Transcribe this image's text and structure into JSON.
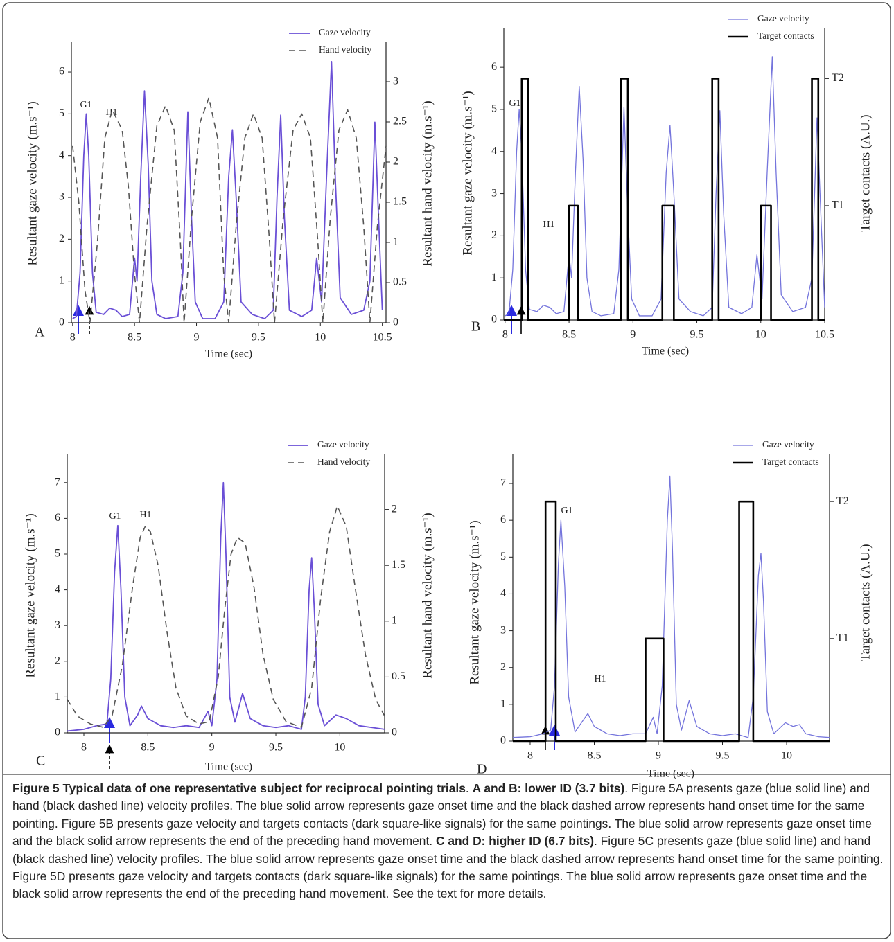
{
  "chart_data": [
    {
      "type": "line",
      "panel_label": "A",
      "xlabel": "Time (sec)",
      "ylabel": "Resultant gaze velocity (m.s⁻¹)",
      "y2label": "Resultant hand velocity (m.s⁻¹)",
      "annotations": [
        "G1",
        "H1"
      ],
      "legend": "top-right",
      "xlim": [
        7.99,
        10.53
      ],
      "xticks": [
        8,
        8.5,
        9,
        9.5,
        10,
        10.5
      ],
      "ylim": [
        0,
        6.73
      ],
      "yticks": [
        0,
        1,
        2,
        3,
        4,
        5,
        6
      ],
      "y2lim": [
        0,
        3.5
      ],
      "y2ticks": [
        0,
        0.5,
        1,
        1.5,
        2,
        2.5,
        3
      ],
      "series": [
        {
          "name": "Gaze velocity",
          "color": "#6a4fd6",
          "line_style": "solid",
          "line_width": 1.8,
          "x": [
            8.0,
            8.03,
            8.06,
            8.09,
            8.11,
            8.13,
            8.16,
            8.19,
            8.25,
            8.3,
            8.35,
            8.4,
            8.46,
            8.5,
            8.52,
            8.55,
            8.58,
            8.61,
            8.64,
            8.68,
            8.75,
            8.85,
            8.89,
            8.93,
            8.96,
            8.99,
            9.05,
            9.15,
            9.22,
            9.26,
            9.29,
            9.32,
            9.36,
            9.45,
            9.55,
            9.62,
            9.65,
            9.68,
            9.71,
            9.75,
            9.85,
            9.93,
            9.97,
            10.01,
            10.05,
            10.09,
            10.12,
            10.16,
            10.25,
            10.35,
            10.4,
            10.44,
            10.47,
            10.5
          ],
          "values": [
            0.1,
            0.15,
            1.2,
            4.0,
            5.0,
            4.0,
            1.2,
            0.25,
            0.2,
            0.35,
            0.3,
            0.15,
            0.2,
            1.55,
            1.0,
            3.5,
            5.55,
            3.8,
            1.0,
            0.2,
            0.1,
            0.15,
            1.2,
            5.05,
            2.5,
            0.5,
            0.1,
            0.1,
            0.5,
            3.5,
            4.62,
            3.0,
            0.5,
            0.2,
            0.1,
            0.3,
            3.0,
            4.97,
            2.5,
            0.3,
            0.15,
            0.3,
            1.55,
            0.5,
            3.5,
            6.25,
            3.5,
            0.6,
            0.2,
            0.3,
            1.0,
            4.8,
            2.5,
            0.3
          ]
        },
        {
          "name": "Hand velocity",
          "color": "#555555",
          "line_style": "dashed",
          "line_width": 1.6,
          "axis": "y2",
          "x": [
            8.0,
            8.05,
            8.1,
            8.14,
            8.2,
            8.26,
            8.32,
            8.4,
            8.45,
            8.5,
            8.54,
            8.6,
            8.68,
            8.75,
            8.82,
            8.87,
            8.9,
            8.96,
            9.03,
            9.1,
            9.17,
            9.22,
            9.26,
            9.32,
            9.39,
            9.46,
            9.53,
            9.59,
            9.63,
            9.7,
            9.78,
            9.85,
            9.92,
            9.98,
            10.02,
            10.08,
            10.15,
            10.22,
            10.29,
            10.35,
            10.4,
            10.46,
            10.53
          ],
          "values": [
            2.2,
            1.5,
            0.4,
            0,
            1.0,
            2.3,
            2.65,
            2.4,
            1.7,
            0.6,
            0,
            1.2,
            2.45,
            2.7,
            2.4,
            1.0,
            0,
            1.3,
            2.5,
            2.8,
            2.3,
            0.6,
            0,
            1.2,
            2.3,
            2.6,
            2.3,
            1.0,
            0,
            1.3,
            2.4,
            2.6,
            2.3,
            1.0,
            0,
            1.3,
            2.4,
            2.65,
            2.3,
            1.2,
            0,
            1.2,
            2.2
          ]
        }
      ]
    },
    {
      "type": "line",
      "panel_label": "B",
      "xlabel": "Time (sec)",
      "ylabel": "Resultant gaze velocity (m.s⁻¹)",
      "y2label": "Target contacts (A.U.)",
      "annotations": [
        "G1",
        "H1"
      ],
      "legend": "top-right",
      "xlim": [
        7.99,
        10.5
      ],
      "xticks": [
        8,
        8.5,
        9,
        9.5,
        10,
        10.5
      ],
      "ylim": [
        0,
        6.94
      ],
      "yticks": [
        0,
        1,
        2,
        3,
        4,
        5,
        6
      ],
      "y2lim": [
        0.1,
        2.4
      ],
      "y2ticks": [
        {
          "value": 1,
          "label": "T1"
        },
        {
          "value": 2,
          "label": "T2"
        }
      ],
      "series": [
        {
          "name": "Gaze velocity",
          "color": "#7474dc",
          "line_style": "solid",
          "line_width": 1.3,
          "x": [
            8.0,
            8.03,
            8.06,
            8.09,
            8.11,
            8.13,
            8.16,
            8.19,
            8.25,
            8.3,
            8.35,
            8.4,
            8.46,
            8.5,
            8.52,
            8.55,
            8.58,
            8.61,
            8.64,
            8.68,
            8.75,
            8.85,
            8.89,
            8.93,
            8.96,
            8.99,
            9.05,
            9.15,
            9.22,
            9.26,
            9.29,
            9.32,
            9.36,
            9.45,
            9.55,
            9.62,
            9.65,
            9.68,
            9.71,
            9.75,
            9.85,
            9.93,
            9.97,
            10.01,
            10.05,
            10.09,
            10.12,
            10.16,
            10.25,
            10.35,
            10.4,
            10.44,
            10.47,
            10.5
          ],
          "values": [
            0.1,
            0.15,
            1.2,
            4.0,
            5.0,
            4.0,
            1.2,
            0.25,
            0.2,
            0.35,
            0.3,
            0.15,
            0.2,
            1.55,
            1.0,
            3.5,
            5.55,
            3.8,
            1.0,
            0.2,
            0.1,
            0.15,
            1.2,
            5.05,
            2.5,
            0.5,
            0.1,
            0.1,
            0.5,
            3.5,
            4.62,
            3.0,
            0.5,
            0.2,
            0.1,
            0.3,
            3.0,
            4.97,
            2.5,
            0.3,
            0.15,
            0.3,
            1.55,
            0.5,
            3.5,
            6.25,
            3.5,
            0.6,
            0.2,
            0.3,
            1.0,
            4.8,
            2.5,
            0.3
          ]
        },
        {
          "name": "Target contacts",
          "color": "#000000",
          "line_style": "solid",
          "line_width": 2.6,
          "axis": "y2",
          "x": [
            7.99,
            8.13,
            8.13,
            8.18,
            8.18,
            8.5,
            8.5,
            8.57,
            8.57,
            8.905,
            8.905,
            8.96,
            8.96,
            9.23,
            9.23,
            9.32,
            9.32,
            9.62,
            9.62,
            9.67,
            9.67,
            10.0,
            10.0,
            10.08,
            10.08,
            10.4,
            10.4,
            10.45,
            10.45,
            10.5
          ],
          "values": [
            0.1,
            0.1,
            2,
            2,
            0.1,
            0.1,
            1,
            1,
            0.1,
            0.1,
            2,
            2,
            0.1,
            0.1,
            1,
            1,
            0.1,
            0.1,
            2,
            2,
            0.1,
            0.1,
            1,
            1,
            0.1,
            0.1,
            2,
            2,
            0.1,
            0.1
          ]
        }
      ]
    },
    {
      "type": "line",
      "panel_label": "C",
      "xlabel": "Time (sec)",
      "ylabel": "Resultant gaze velocity (m.s⁻¹)",
      "y2label": "Resultant hand velocity (m.s⁻¹)",
      "annotations": [
        "G1",
        "H1"
      ],
      "legend": "top-right",
      "xlim": [
        7.87,
        10.35
      ],
      "xticks": [
        8,
        8.5,
        9,
        9.5,
        10
      ],
      "ylim": [
        0,
        7.81
      ],
      "yticks": [
        0,
        1,
        2,
        3,
        4,
        5,
        6,
        7
      ],
      "y2lim": [
        0,
        2.5
      ],
      "y2ticks": [
        0,
        0.5,
        1,
        1.5,
        2
      ],
      "series": [
        {
          "name": "Gaze velocity",
          "color": "#6a4fd6",
          "line_style": "solid",
          "line_width": 1.8,
          "x": [
            7.87,
            8.0,
            8.1,
            8.18,
            8.21,
            8.24,
            8.265,
            8.29,
            8.32,
            8.36,
            8.42,
            8.45,
            8.5,
            8.6,
            8.7,
            8.8,
            8.9,
            8.97,
            9.0,
            9.04,
            9.07,
            9.09,
            9.11,
            9.14,
            9.18,
            9.24,
            9.3,
            9.4,
            9.5,
            9.6,
            9.7,
            9.73,
            9.76,
            9.78,
            9.8,
            9.83,
            9.88,
            9.97,
            10.05,
            10.15,
            10.25,
            10.35
          ],
          "values": [
            0.05,
            0.1,
            0.2,
            0.25,
            1.5,
            4.5,
            5.8,
            4.0,
            1.0,
            0.2,
            0.5,
            0.75,
            0.4,
            0.2,
            0.15,
            0.2,
            0.15,
            0.6,
            0.2,
            1.5,
            5.5,
            7.0,
            5.0,
            1.0,
            0.3,
            1.1,
            0.4,
            0.2,
            0.15,
            0.2,
            0.1,
            1.0,
            4.0,
            4.9,
            3.5,
            0.8,
            0.2,
            0.5,
            0.4,
            0.2,
            0.15,
            0.1
          ]
        },
        {
          "name": "Hand velocity",
          "color": "#555555",
          "line_style": "dashed",
          "line_width": 1.6,
          "axis": "y2",
          "x": [
            7.87,
            7.95,
            8.05,
            8.15,
            8.22,
            8.3,
            8.38,
            8.44,
            8.48,
            8.52,
            8.58,
            8.65,
            8.72,
            8.8,
            8.9,
            8.98,
            9.05,
            9.1,
            9.15,
            9.2,
            9.26,
            9.33,
            9.4,
            9.48,
            9.58,
            9.7,
            9.78,
            9.85,
            9.92,
            9.98,
            10.05,
            10.12,
            10.2,
            10.28,
            10.35
          ],
          "values": [
            0.3,
            0.15,
            0.08,
            0.05,
            0.15,
            0.6,
            1.3,
            1.75,
            1.85,
            1.8,
            1.5,
            0.9,
            0.4,
            0.15,
            0.08,
            0.1,
            0.5,
            1.1,
            1.6,
            1.75,
            1.7,
            1.3,
            0.7,
            0.3,
            0.1,
            0.05,
            0.4,
            1.2,
            1.8,
            2.03,
            1.85,
            1.3,
            0.7,
            0.3,
            0.15
          ]
        }
      ]
    },
    {
      "type": "line",
      "panel_label": "D",
      "xlabel": "Time (sec)",
      "ylabel": "Resultant gaze velocity (m.s⁻¹)",
      "y2label": "Target contacts (A.U.)",
      "annotations": [
        "G1",
        "H1"
      ],
      "legend": "top-right",
      "xlim": [
        7.865,
        10.335
      ],
      "xticks": [
        8,
        8.5,
        9,
        9.5,
        10
      ],
      "ylim": [
        0,
        7.81
      ],
      "yticks": [
        0,
        1,
        2,
        3,
        4,
        5,
        6,
        7
      ],
      "y2lim": [
        0.25,
        2.35
      ],
      "y2ticks": [
        {
          "value": 1,
          "label": "T1"
        },
        {
          "value": 2,
          "label": "T2"
        }
      ],
      "series": [
        {
          "name": "Gaze velocity",
          "color": "#7474dc",
          "line_style": "solid",
          "line_width": 1.3,
          "x": [
            7.865,
            8.0,
            8.1,
            8.16,
            8.19,
            8.22,
            8.24,
            8.27,
            8.3,
            8.35,
            8.41,
            8.45,
            8.5,
            8.6,
            8.7,
            8.8,
            8.9,
            8.96,
            8.99,
            9.03,
            9.07,
            9.09,
            9.11,
            9.14,
            9.18,
            9.24,
            9.3,
            9.4,
            9.5,
            9.6,
            9.7,
            9.74,
            9.78,
            9.8,
            9.82,
            9.85,
            9.9,
            9.99,
            10.05,
            10.1,
            10.15,
            10.25,
            10.335
          ],
          "values": [
            0.1,
            0.12,
            0.2,
            0.3,
            1.5,
            4.8,
            6.0,
            4.2,
            1.2,
            0.25,
            0.55,
            0.75,
            0.4,
            0.2,
            0.15,
            0.2,
            0.2,
            0.65,
            0.2,
            1.5,
            6.0,
            7.2,
            5.2,
            1.0,
            0.3,
            1.1,
            0.4,
            0.2,
            0.15,
            0.2,
            0.1,
            1.2,
            4.5,
            5.1,
            3.8,
            0.8,
            0.2,
            0.5,
            0.4,
            0.45,
            0.2,
            0.12,
            0.1
          ]
        },
        {
          "name": "Target contacts",
          "color": "#000000",
          "line_style": "solid",
          "line_width": 2.6,
          "axis": "y2",
          "x": [
            7.865,
            8.12,
            8.12,
            8.2,
            8.2,
            8.9,
            8.9,
            9.04,
            9.04,
            9.63,
            9.63,
            9.74,
            9.74,
            10.335
          ],
          "values": [
            0.25,
            0.25,
            2,
            2,
            0.25,
            0.25,
            1,
            1,
            0.25,
            0.25,
            2,
            2,
            0.25,
            0.25
          ]
        }
      ]
    }
  ],
  "caption": [
    {
      "text": "Figure 5 Typical data of one representative subject for reciprocal pointing trials",
      "bold": true
    },
    {
      "text": ". ",
      "bold": false
    },
    {
      "text": "A and B: lower ID (3.7 bits)",
      "bold": true
    },
    {
      "text": ". Figure 5A presents gaze (blue solid line) and hand (black dashed line) velocity profiles. The blue solid arrow represents gaze onset time and the black dashed arrow represents hand onset time for the same pointing. Figure 5B presents gaze velocity and targets contacts (dark square-like signals) for the same pointings. The blue solid arrow represents gaze onset time and the black solid arrow represents the end of the preceding hand movement. ",
      "bold": false
    },
    {
      "text": "C and D: higher ID (6.7 bits)",
      "bold": true
    },
    {
      "text": ". Figure 5C presents gaze (blue solid line) and hand (black dashed line) velocity profiles. The blue solid arrow represents gaze onset time and the black dashed arrow represents hand onset time for the same pointing. Figure 5D presents gaze velocity and targets contacts (dark square-like signals) for the same pointings. The blue solid arrow represents gaze onset time and the black solid arrow represents the end of the preceding hand movement. See the text for more details.",
      "bold": false
    }
  ]
}
